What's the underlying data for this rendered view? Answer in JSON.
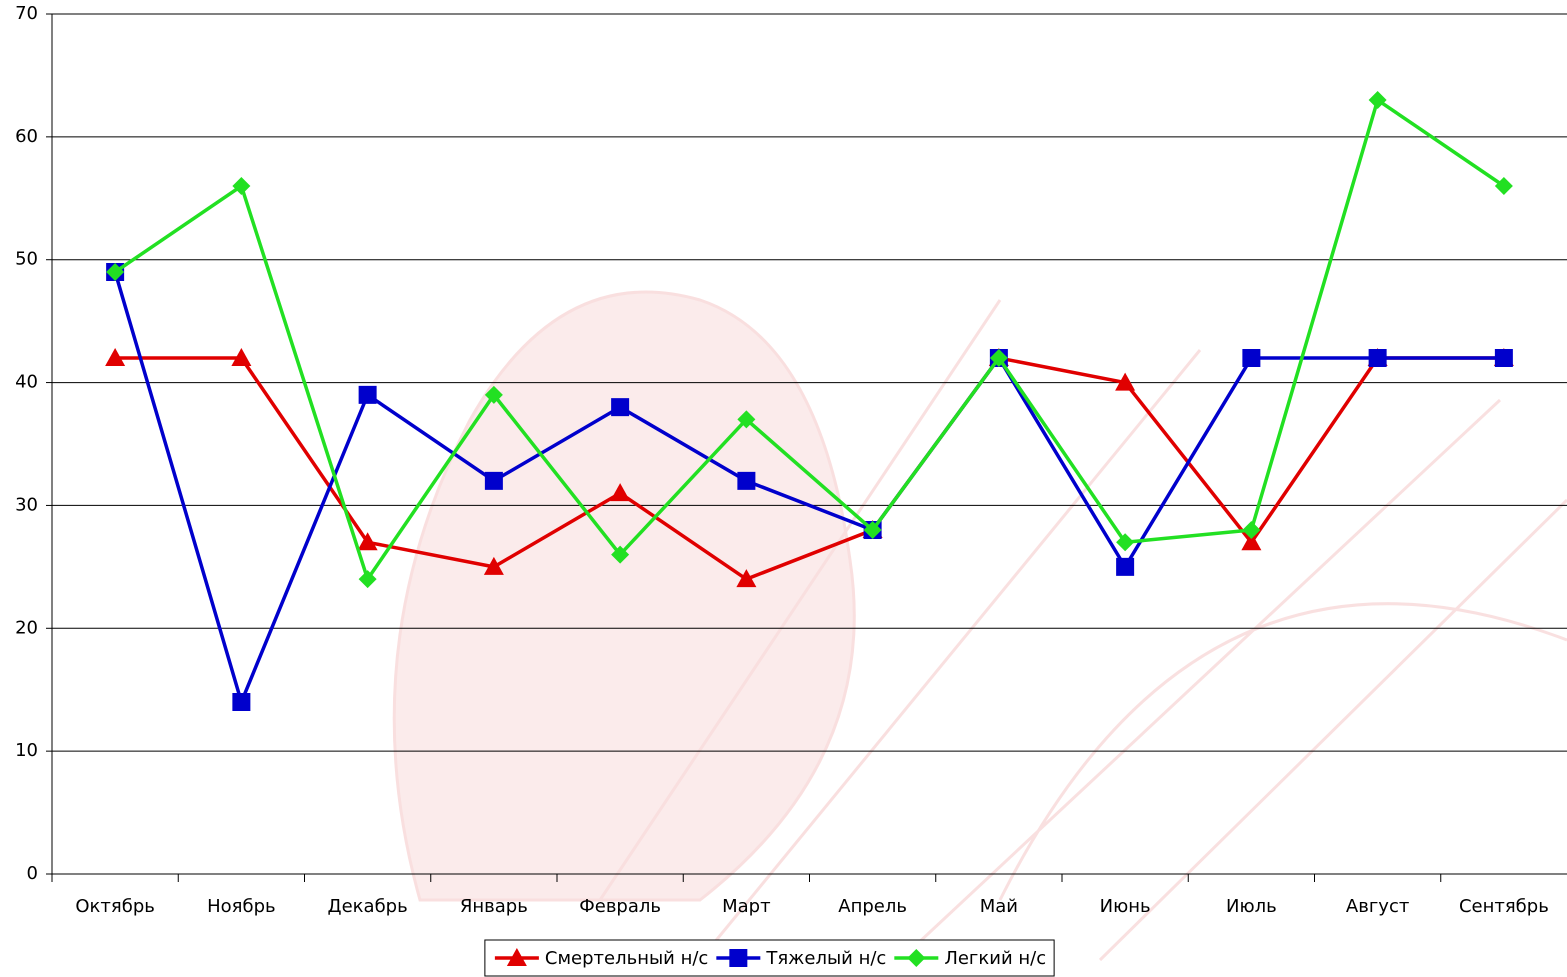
{
  "chart_data": {
    "type": "line",
    "categories": [
      "Октябрь",
      "Ноябрь",
      "Декабрь",
      "Январь",
      "Февраль",
      "Март",
      "Апрель",
      "Май",
      "Июнь",
      "Июль",
      "Август",
      "Сентябрь"
    ],
    "series": [
      {
        "name": "Смертельный н/с",
        "color": "#e00000",
        "marker": "triangle",
        "values": [
          42,
          42,
          27,
          25,
          31,
          24,
          28,
          42,
          40,
          27,
          42,
          42
        ]
      },
      {
        "name": "Тяжелый н/с",
        "color": "#0000cc",
        "marker": "square",
        "values": [
          49,
          14,
          39,
          32,
          38,
          32,
          28,
          42,
          25,
          42,
          42,
          42
        ]
      },
      {
        "name": "Легкий н/с",
        "color": "#22e022",
        "marker": "diamond",
        "values": [
          49,
          56,
          24,
          39,
          26,
          37,
          28,
          42,
          27,
          28,
          63,
          56
        ]
      }
    ],
    "ylim": [
      0,
      70
    ],
    "yticks": [
      0,
      10,
      20,
      30,
      40,
      50,
      60,
      70
    ],
    "grid": true,
    "legend": "bottom"
  }
}
